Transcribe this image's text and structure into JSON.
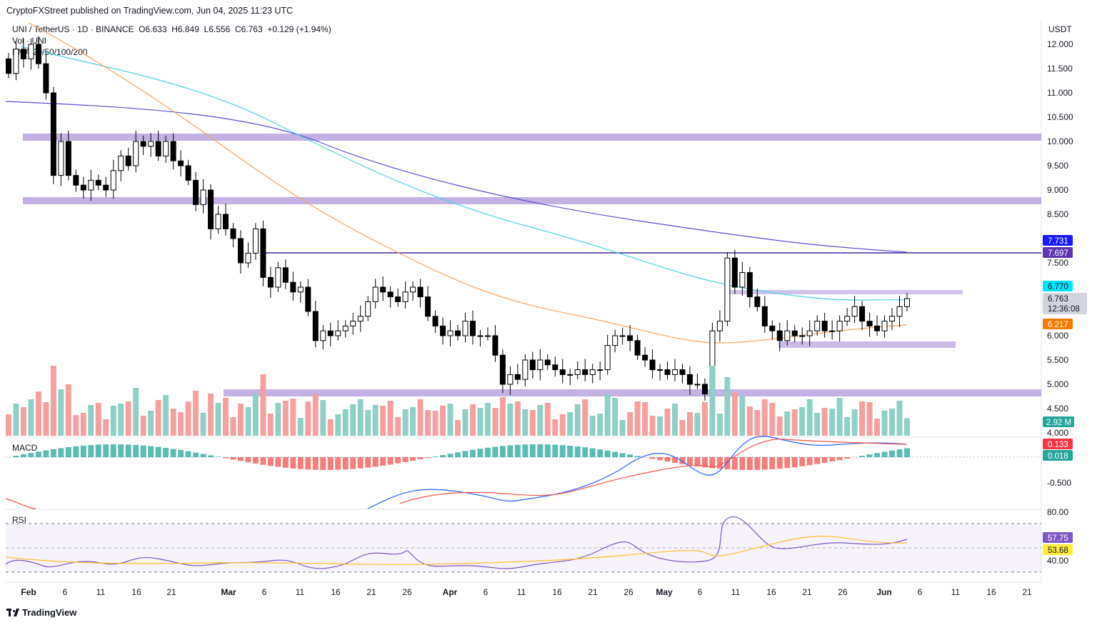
{
  "header": {
    "published": "CryptoFXStreet published on TradingView.com, Jun 04, 2025 11:23 UTC"
  },
  "legend": {
    "symbol": "UNI / TetherUS · 1D · BINANCE",
    "open": "O6.633",
    "high": "H6.849",
    "low": "L6.556",
    "close": "C6.763",
    "change": "+0.129 (+1.94%)",
    "vol": "Vol · UNI",
    "ema": "EMA 20/50/100/200"
  },
  "indicators": {
    "macd_label": "MACD",
    "rsi_label": "RSI"
  },
  "price_axis": {
    "currency": "USDT",
    "ticks": [
      "12.000",
      "11.500",
      "11.000",
      "10.500",
      "10.000",
      "9.500",
      "9.000",
      "8.500",
      "7.500",
      "6.000",
      "5.500",
      "5.000",
      "4.500",
      "4.000"
    ],
    "tick_values": [
      12,
      11.5,
      11,
      10.5,
      10,
      9.5,
      9,
      8.5,
      7.5,
      6,
      5.5,
      5,
      4.5,
      4
    ]
  },
  "macd_axis": {
    "ticks": [
      "-0.500"
    ]
  },
  "rsi_axis": {
    "ticks": [
      "80.00",
      "40.00"
    ]
  },
  "tags": {
    "ema200": "7.731",
    "resistance": "7.697",
    "ema100": "6.770",
    "last": "6.763",
    "countdown": "12:36:08",
    "ema50": "6.217",
    "volume": "2.92 M",
    "macd": "0.133",
    "macd_hist": "0.018",
    "rsi": "57.75",
    "rsi_ma": "53.68"
  },
  "colors": {
    "up_candle": "#ffffff",
    "down_candle": "#000000",
    "up_volume": "#8fd0c6",
    "down_volume": "#f5a0a0",
    "zone": "#b39ddb",
    "ema200": "#5b4fd6",
    "ema100": "#4dd0e1",
    "ema50": "#f7a35c",
    "macd_line": "#2962ff",
    "signal_line": "#ef5350",
    "rsi_line": "#7e57c2",
    "rsi_ma": "#fbc02d",
    "hist_up": "#26a69a",
    "hist_down": "#ef5350"
  },
  "x_axis": {
    "labels": [
      "Feb",
      "6",
      "11",
      "16",
      "21",
      "Mar",
      "6",
      "11",
      "16",
      "21",
      "26",
      "Apr",
      "6",
      "11",
      "16",
      "21",
      "26",
      "May",
      "6",
      "11",
      "16",
      "21",
      "26",
      "Jun",
      "6",
      "11",
      "16",
      "21"
    ],
    "bold": [
      "Feb",
      "Mar",
      "Apr",
      "May",
      "Jun"
    ]
  },
  "chart_data": {
    "type": "candlestick",
    "symbol": "UNI / TetherUS",
    "timeframe": "1D",
    "exchange": "BINANCE",
    "last_candle": {
      "open": 6.633,
      "high": 6.849,
      "low": 6.556,
      "close": 6.763,
      "change": 0.129,
      "change_pct": 1.94
    },
    "y_range": [
      4.0,
      12.2
    ],
    "horizontal_zones": [
      {
        "price": 10.05
      },
      {
        "price": 8.8
      },
      {
        "price": 4.85
      },
      {
        "price": 5.8
      },
      {
        "price": 6.9
      }
    ],
    "resistance_line": 7.697,
    "ema": {
      "ema50": 6.217,
      "ema100": 6.77,
      "ema200": 7.731
    },
    "closes": [
      11.4,
      11.9,
      11.7,
      12.0,
      11.6,
      11.0,
      9.3,
      10.0,
      9.3,
      9.1,
      9.0,
      9.2,
      9.1,
      9.0,
      9.4,
      9.7,
      9.5,
      10.0,
      9.9,
      10.0,
      9.7,
      10.0,
      9.6,
      9.5,
      9.2,
      8.7,
      9.0,
      8.2,
      8.5,
      8.2,
      8.0,
      7.5,
      7.7,
      8.2,
      7.2,
      7.0,
      7.4,
      7.1,
      6.9,
      7.0,
      6.5,
      5.9,
      6.1,
      6.0,
      6.1,
      6.2,
      6.3,
      6.4,
      6.7,
      7.0,
      6.9,
      6.8,
      6.7,
      6.9,
      7.0,
      6.8,
      6.4,
      6.2,
      6.0,
      6.1,
      6.0,
      6.3,
      6.0,
      6.0,
      6.0,
      5.6,
      5.0,
      5.2,
      5.1,
      5.5,
      5.3,
      5.5,
      5.4,
      5.3,
      5.2,
      5.2,
      5.3,
      5.2,
      5.3,
      5.3,
      5.8,
      6.0,
      6.0,
      5.9,
      5.6,
      5.5,
      5.3,
      5.3,
      5.2,
      5.3,
      5.2,
      5.0,
      5.0,
      4.8,
      6.1,
      6.3,
      7.6,
      7.0,
      7.3,
      6.8,
      6.6,
      6.2,
      6.1,
      5.9,
      6.1,
      6.0,
      6.0,
      6.1,
      6.3,
      6.1,
      6.1,
      6.3,
      6.4,
      6.6,
      6.3,
      6.2,
      6.1,
      6.3,
      6.4,
      6.6,
      6.763
    ],
    "volume_last": 2.92,
    "macd": {
      "macd": 0.133,
      "histogram": 0.018,
      "axis_tick": -0.5
    },
    "rsi": {
      "rsi": 57.75,
      "rsi_ma": 53.68,
      "upper": 70,
      "lower": 30
    }
  }
}
